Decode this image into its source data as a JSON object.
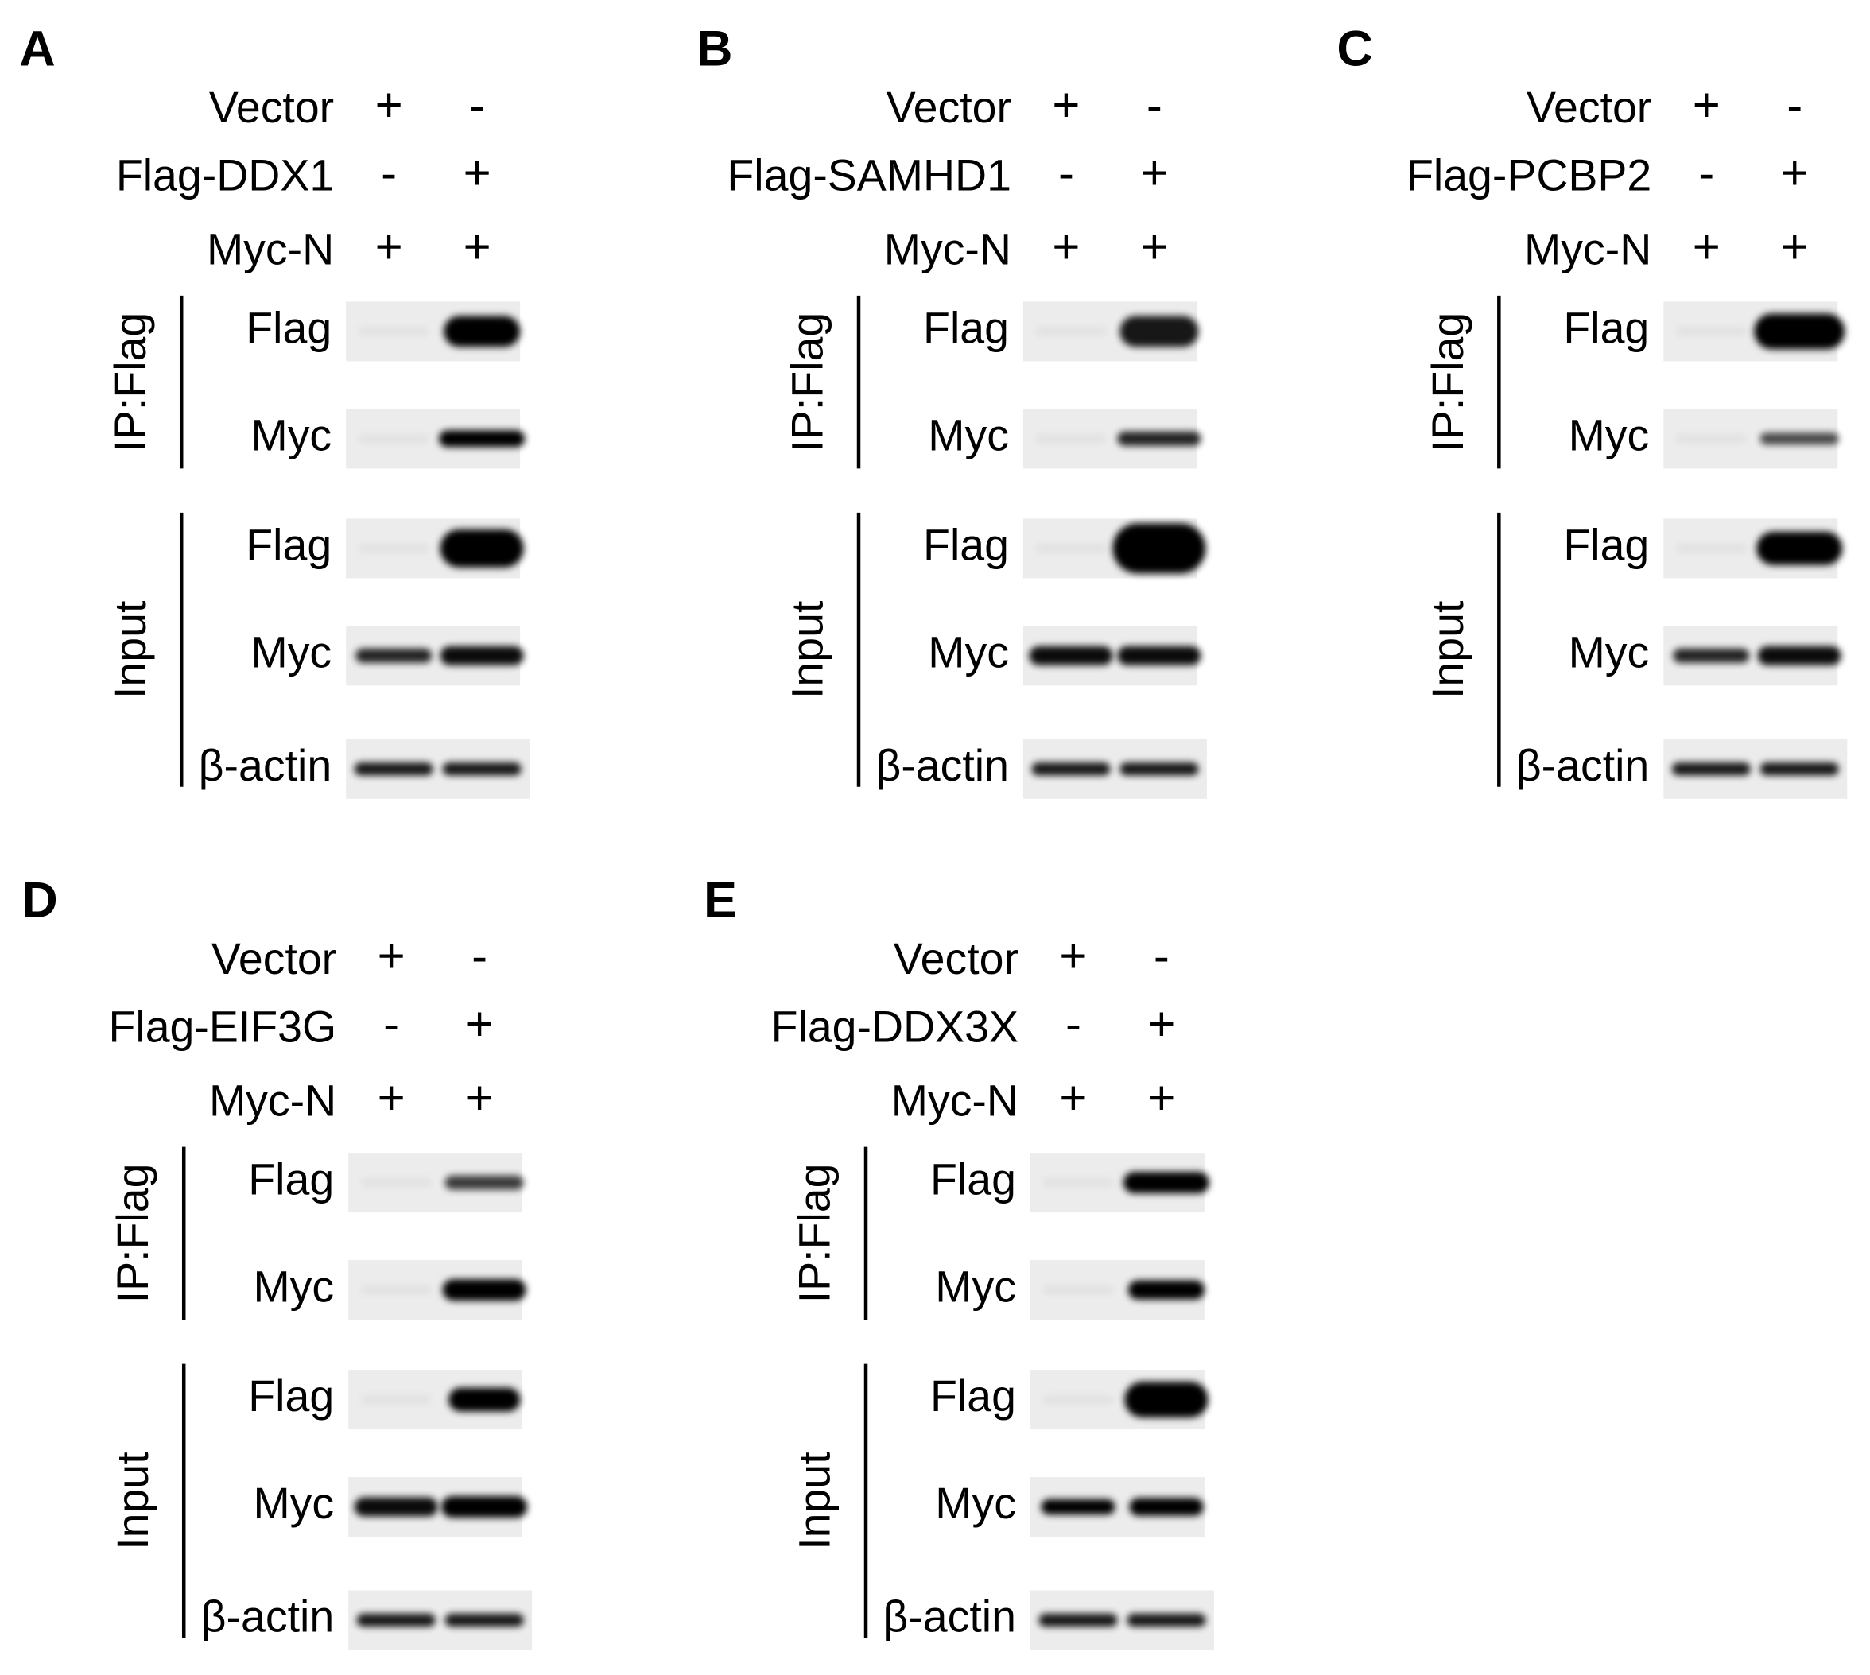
{
  "panels": [
    {
      "letter": "A",
      "conditions": [
        {
          "label": "Vector",
          "lanes": [
            "+",
            "-"
          ]
        },
        {
          "label": "Flag-DDX1",
          "lanes": [
            "-",
            "+"
          ]
        },
        {
          "label": "Myc-N",
          "lanes": [
            "+",
            "+"
          ]
        }
      ],
      "groups": [
        {
          "label": "IP:Flag",
          "blots": [
            "Flag",
            "Myc"
          ]
        },
        {
          "label": "Input",
          "blots": [
            "Flag",
            "Myc",
            "β-actin"
          ]
        }
      ]
    },
    {
      "letter": "B",
      "conditions": [
        {
          "label": "Vector",
          "lanes": [
            "+",
            "-"
          ]
        },
        {
          "label": "Flag-SAMHD1",
          "lanes": [
            "-",
            "+"
          ]
        },
        {
          "label": "Myc-N",
          "lanes": [
            "+",
            "+"
          ]
        }
      ],
      "groups": [
        {
          "label": "IP:Flag",
          "blots": [
            "Flag",
            "Myc"
          ]
        },
        {
          "label": "Input",
          "blots": [
            "Flag",
            "Myc",
            "β-actin"
          ]
        }
      ]
    },
    {
      "letter": "C",
      "conditions": [
        {
          "label": "Vector",
          "lanes": [
            "+",
            "-"
          ]
        },
        {
          "label": "Flag-PCBP2",
          "lanes": [
            "-",
            "+"
          ]
        },
        {
          "label": "Myc-N",
          "lanes": [
            "+",
            "+"
          ]
        }
      ],
      "groups": [
        {
          "label": "IP:Flag",
          "blots": [
            "Flag",
            "Myc"
          ]
        },
        {
          "label": "Input",
          "blots": [
            "Flag",
            "Myc",
            "β-actin"
          ]
        }
      ]
    },
    {
      "letter": "D",
      "conditions": [
        {
          "label": "Vector",
          "lanes": [
            "+",
            "-"
          ]
        },
        {
          "label": "Flag-EIF3G",
          "lanes": [
            "-",
            "+"
          ]
        },
        {
          "label": "Myc-N",
          "lanes": [
            "+",
            "+"
          ]
        }
      ],
      "groups": [
        {
          "label": "IP:Flag",
          "blots": [
            "Flag",
            "Myc"
          ]
        },
        {
          "label": "Input",
          "blots": [
            "Flag",
            "Myc",
            "β-actin"
          ]
        }
      ]
    },
    {
      "letter": "E",
      "conditions": [
        {
          "label": "Vector",
          "lanes": [
            "+",
            "-"
          ]
        },
        {
          "label": "Flag-DDX3X",
          "lanes": [
            "-",
            "+"
          ]
        },
        {
          "label": "Myc-N",
          "lanes": [
            "+",
            "+"
          ]
        }
      ],
      "groups": [
        {
          "label": "IP:Flag",
          "blots": [
            "Flag",
            "Myc"
          ]
        },
        {
          "label": "Input",
          "blots": [
            "Flag",
            "Myc",
            "β-actin"
          ]
        }
      ]
    }
  ]
}
